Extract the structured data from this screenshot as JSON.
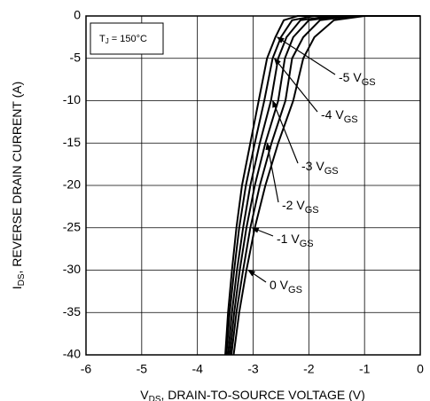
{
  "chart_data": {
    "type": "line",
    "x_label": {
      "main": "V",
      "sub": "DS",
      "rest": ", DRAIN-TO-SOURCE VOLTAGE (V)"
    },
    "y_label": {
      "main": "I",
      "sub": "DS",
      "rest": ", REVERSE DRAIN CURRENT (A)"
    },
    "annotation": {
      "main": "T",
      "sub": "J",
      "rest": " = 150°C"
    },
    "xlim": [
      -6,
      0
    ],
    "xticks": [
      -6,
      -5,
      -4,
      -3,
      -2,
      -1,
      0
    ],
    "ylim": [
      -40,
      0
    ],
    "yticks": [
      0,
      -5,
      -10,
      -15,
      -20,
      -25,
      -30,
      -35,
      -40
    ],
    "grid": true,
    "color": "#000000",
    "series": [
      {
        "name": "-5 V",
        "sub": "GS",
        "x": [
          0,
          -2.2,
          -2.45,
          -2.6,
          -2.75,
          -2.9,
          -3.05,
          -3.2,
          -3.3,
          -3.38,
          -3.45,
          -3.5
        ],
        "values": [
          0,
          0,
          -0.5,
          -2.5,
          -5,
          -10,
          -15,
          -20,
          -25,
          -30,
          -35,
          -40
        ]
      },
      {
        "name": "-4 V",
        "sub": "GS",
        "x": [
          0,
          -1.9,
          -2.3,
          -2.5,
          -2.65,
          -2.8,
          -2.97,
          -3.13,
          -3.25,
          -3.34,
          -3.42,
          -3.48
        ],
        "values": [
          0,
          0,
          -0.5,
          -2.5,
          -5,
          -10,
          -15,
          -20,
          -25,
          -30,
          -35,
          -40
        ]
      },
      {
        "name": "-3 V",
        "sub": "GS",
        "x": [
          0,
          -1.6,
          -2.15,
          -2.4,
          -2.55,
          -2.68,
          -2.88,
          -3.05,
          -3.18,
          -3.29,
          -3.38,
          -3.45
        ],
        "values": [
          0,
          0,
          -0.5,
          -2.5,
          -5,
          -10,
          -15,
          -20,
          -25,
          -30,
          -35,
          -40
        ]
      },
      {
        "name": "-2 V",
        "sub": "GS",
        "x": [
          0,
          -1.4,
          -2.0,
          -2.28,
          -2.43,
          -2.55,
          -2.78,
          -2.97,
          -3.12,
          -3.24,
          -3.34,
          -3.42
        ],
        "values": [
          0,
          0,
          -0.5,
          -2.5,
          -5,
          -10,
          -15,
          -20,
          -25,
          -30,
          -35,
          -40
        ]
      },
      {
        "name": "-1 V",
        "sub": "GS",
        "x": [
          0,
          -1.2,
          -1.8,
          -2.1,
          -2.3,
          -2.42,
          -2.67,
          -2.88,
          -3.05,
          -3.18,
          -3.3,
          -3.39
        ],
        "values": [
          0,
          0,
          -0.5,
          -2.5,
          -5,
          -10,
          -15,
          -20,
          -25,
          -30,
          -35,
          -40
        ]
      },
      {
        "name": "0 V",
        "sub": "GS",
        "x": [
          0,
          -1.0,
          -1.55,
          -1.9,
          -2.1,
          -2.28,
          -2.55,
          -2.78,
          -2.97,
          -3.12,
          -3.25,
          -3.35
        ],
        "values": [
          0,
          0,
          -0.5,
          -2.5,
          -5,
          -10,
          -15,
          -20,
          -25,
          -30,
          -35,
          -40
        ]
      }
    ]
  }
}
